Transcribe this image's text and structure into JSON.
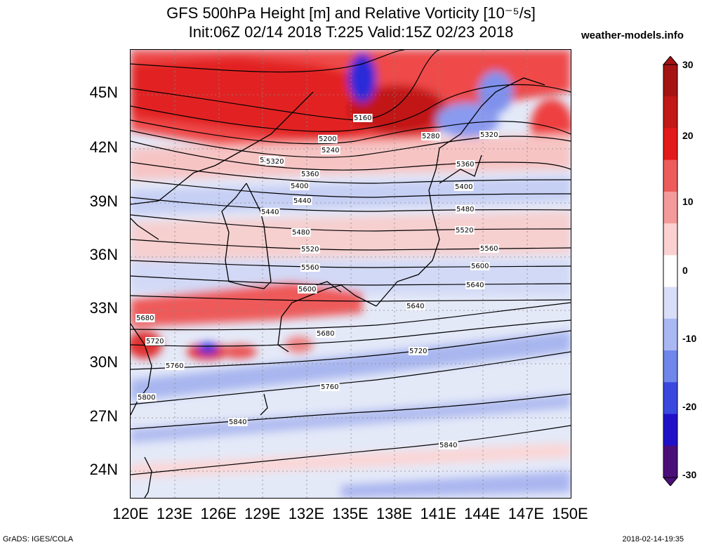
{
  "title_line1": "GFS 500hPa Height [m] and Relative Vorticity [10⁻⁵/s]",
  "title_line2": "Init:06Z 02/14 2018 T:225 Valid:15Z 02/23 2018",
  "site": "weather-models.info",
  "footer_left": "GrADS: IGES/COLA",
  "footer_right": "2018-02-14-19:35",
  "lat_labels": [
    "45N",
    "42N",
    "39N",
    "36N",
    "33N",
    "30N",
    "27N",
    "24N"
  ],
  "lon_labels": [
    "120E",
    "123E",
    "126E",
    "129E",
    "132E",
    "135E",
    "138E",
    "141E",
    "144E",
    "147E",
    "150E"
  ],
  "colorbar": {
    "ticks": [
      "30",
      "20",
      "10",
      "0",
      "-10",
      "-20",
      "-30"
    ],
    "colors": [
      "#4b0f7a",
      "#2010c8",
      "#3a48e0",
      "#6f86ea",
      "#a9b8f2",
      "#d8def8",
      "#ffffff",
      "#fbd0d0",
      "#f49a9a",
      "#ec5c5c",
      "#e31a1a",
      "#c21818",
      "#a51414"
    ]
  },
  "contour_labels": [
    "5160",
    "5200",
    "5240",
    "5280",
    "5280",
    "5320",
    "5320",
    "5360",
    "5360",
    "5400",
    "5400",
    "5440",
    "5440",
    "5480",
    "5480",
    "5520",
    "5520",
    "5560",
    "5560",
    "5600",
    "5600",
    "5640",
    "5640",
    "5680",
    "5680",
    "5720",
    "5720",
    "5760",
    "5760",
    "5800",
    "5840",
    "5840"
  ]
}
